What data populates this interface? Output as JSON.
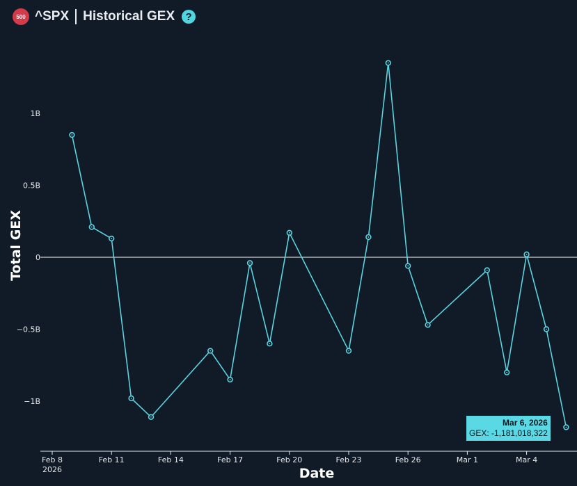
{
  "header": {
    "badge": "500",
    "ticker": "^SPX",
    "title": "Historical GEX",
    "help": "?"
  },
  "tooltip": {
    "date": "Mar 6, 2026",
    "value": "GEX: -1,181,018,322"
  },
  "colors": {
    "background": "#111b28",
    "line": "#5ad3de",
    "zero_line": "#ffffff"
  },
  "chart_data": {
    "type": "line",
    "xlabel": "Date",
    "ylabel": "Total GEX",
    "ylim": [
      -1.3,
      1.45
    ],
    "y_ticks": [
      {
        "value": 1.0,
        "label": "1B"
      },
      {
        "value": 0.5,
        "label": "0.5B"
      },
      {
        "value": 0.0,
        "label": "0"
      },
      {
        "value": -0.5,
        "label": "−0.5B"
      },
      {
        "value": -1.0,
        "label": "−1B"
      }
    ],
    "x_ticks": [
      {
        "day": 8,
        "label": "Feb 8",
        "sub": "2026"
      },
      {
        "day": 11,
        "label": "Feb 11",
        "sub": ""
      },
      {
        "day": 14,
        "label": "Feb 14",
        "sub": ""
      },
      {
        "day": 17,
        "label": "Feb 17",
        "sub": ""
      },
      {
        "day": 20,
        "label": "Feb 20",
        "sub": ""
      },
      {
        "day": 23,
        "label": "Feb 23",
        "sub": ""
      },
      {
        "day": 26,
        "label": "Feb 26",
        "sub": ""
      },
      {
        "day": 29,
        "label": "Mar 1",
        "sub": ""
      },
      {
        "day": 32,
        "label": "Mar 4",
        "sub": ""
      }
    ],
    "series": [
      {
        "points": [
          {
            "date": "2026-02-09",
            "day": 9,
            "value": 0.85
          },
          {
            "date": "2026-02-10",
            "day": 10,
            "value": 0.21
          },
          {
            "date": "2026-02-11",
            "day": 11,
            "value": 0.13
          },
          {
            "date": "2026-02-12",
            "day": 12,
            "value": -0.98
          },
          {
            "date": "2026-02-13",
            "day": 13,
            "value": -1.11
          },
          {
            "date": "2026-02-16",
            "day": 16,
            "value": -0.65
          },
          {
            "date": "2026-02-17",
            "day": 17,
            "value": -0.85
          },
          {
            "date": "2026-02-18",
            "day": 18,
            "value": -0.04
          },
          {
            "date": "2026-02-19",
            "day": 19,
            "value": -0.6
          },
          {
            "date": "2026-02-20",
            "day": 20,
            "value": 0.17
          },
          {
            "date": "2026-02-23",
            "day": 23,
            "value": -0.65
          },
          {
            "date": "2026-02-24",
            "day": 24,
            "value": 0.14
          },
          {
            "date": "2026-02-25",
            "day": 25,
            "value": 1.35
          },
          {
            "date": "2026-02-26",
            "day": 26,
            "value": -0.06
          },
          {
            "date": "2026-02-27",
            "day": 27,
            "value": -0.47
          },
          {
            "date": "2026-03-02",
            "day": 30,
            "value": -0.09
          },
          {
            "date": "2026-03-03",
            "day": 31,
            "value": -0.8
          },
          {
            "date": "2026-03-04",
            "day": 32,
            "value": 0.02
          },
          {
            "date": "2026-03-05",
            "day": 33,
            "value": -0.5
          },
          {
            "date": "2026-03-06",
            "day": 34,
            "value": -1.181018322
          }
        ]
      }
    ]
  }
}
